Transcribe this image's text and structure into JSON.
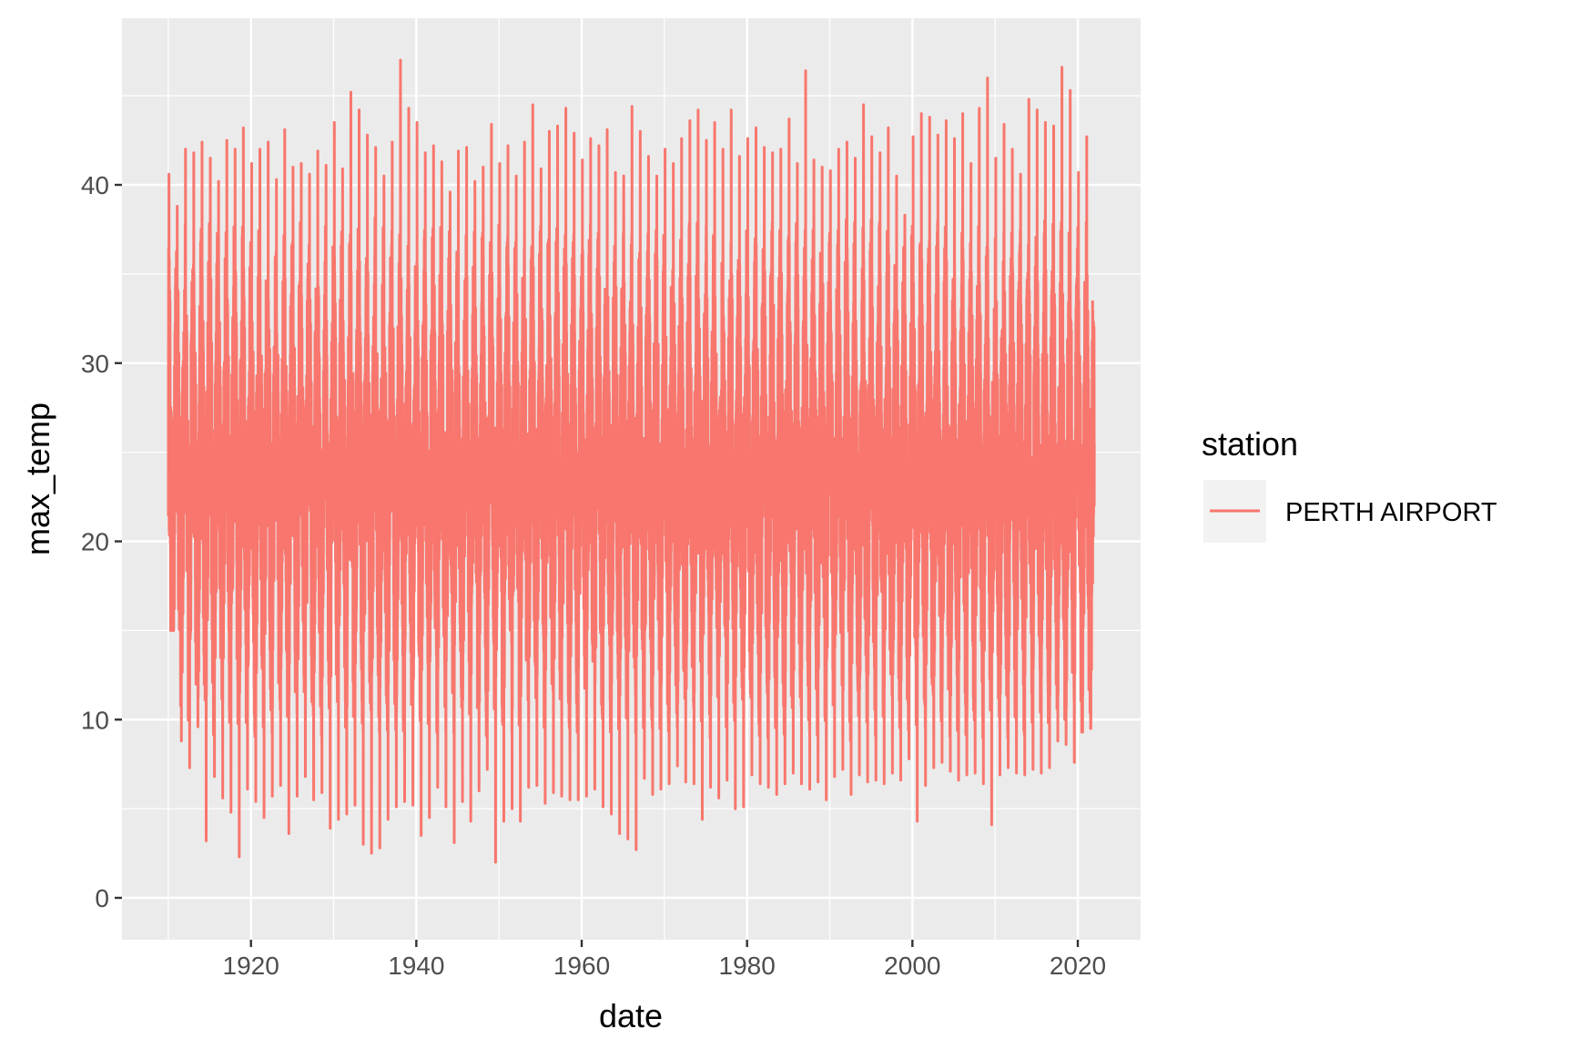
{
  "chart_data": {
    "type": "line",
    "title": "",
    "xlabel": "date",
    "ylabel": "max_temp",
    "x_range": [
      "1910-01-01",
      "2021-12-31"
    ],
    "x_ticks": [
      "1920",
      "1940",
      "1960",
      "1980",
      "2000",
      "2020"
    ],
    "ylim": [
      0,
      47
    ],
    "y_ticks": [
      0,
      10,
      20,
      30,
      40
    ],
    "grid": true,
    "legend": {
      "title": "station",
      "placement": "right"
    },
    "series": [
      {
        "name": "PERTH AIRPORT",
        "color": "#f8766d",
        "sampling": "yearly extremes",
        "years": [
          1910,
          1911,
          1912,
          1913,
          1914,
          1915,
          1916,
          1917,
          1918,
          1919,
          1920,
          1921,
          1922,
          1923,
          1924,
          1925,
          1926,
          1927,
          1928,
          1929,
          1930,
          1931,
          1932,
          1933,
          1934,
          1935,
          1936,
          1937,
          1938,
          1939,
          1940,
          1941,
          1942,
          1943,
          1944,
          1945,
          1946,
          1947,
          1948,
          1949,
          1950,
          1951,
          1952,
          1953,
          1954,
          1955,
          1956,
          1957,
          1958,
          1959,
          1960,
          1961,
          1962,
          1963,
          1964,
          1965,
          1966,
          1967,
          1968,
          1969,
          1970,
          1971,
          1972,
          1973,
          1974,
          1975,
          1976,
          1977,
          1978,
          1979,
          1980,
          1981,
          1982,
          1983,
          1984,
          1985,
          1986,
          1987,
          1988,
          1989,
          1990,
          1991,
          1992,
          1993,
          1994,
          1995,
          1996,
          1997,
          1998,
          1999,
          2000,
          2001,
          2002,
          2003,
          2004,
          2005,
          2006,
          2007,
          2008,
          2009,
          2010,
          2011,
          2012,
          2013,
          2014,
          2015,
          2016,
          2017,
          2018,
          2019,
          2020,
          2021
        ],
        "annual_max": [
          40.6,
          38.8,
          42.0,
          41.8,
          42.4,
          41.5,
          40.2,
          42.5,
          42.0,
          43.2,
          41.2,
          42.0,
          42.4,
          40.3,
          43.1,
          41.0,
          41.2,
          40.6,
          41.9,
          41.1,
          43.5,
          40.9,
          45.2,
          44.2,
          42.8,
          42.1,
          40.5,
          42.4,
          47.0,
          44.3,
          43.5,
          41.8,
          42.2,
          41.3,
          39.6,
          41.9,
          42.1,
          40.2,
          41.0,
          43.4,
          41.2,
          42.2,
          40.5,
          42.4,
          44.5,
          40.9,
          43.0,
          43.3,
          44.3,
          42.9,
          41.4,
          42.6,
          42.2,
          43.1,
          40.7,
          40.5,
          44.4,
          43.0,
          41.6,
          40.5,
          42.0,
          41.2,
          42.6,
          43.6,
          44.2,
          42.5,
          43.5,
          42.0,
          44.2,
          41.6,
          42.6,
          43.2,
          42.1,
          41.8,
          42.0,
          43.7,
          41.2,
          46.4,
          41.4,
          41.0,
          40.8,
          42.0,
          42.4,
          41.5,
          44.5,
          42.7,
          41.8,
          43.2,
          40.5,
          38.3,
          42.7,
          44.0,
          43.8,
          42.8,
          43.6,
          42.6,
          44.0,
          41.2,
          44.3,
          46.0,
          41.5,
          43.4,
          42.0,
          40.6,
          44.8,
          44.2,
          43.5,
          43.3,
          46.6,
          45.3,
          40.7,
          42.7
        ],
        "annual_min": [
          15.0,
          8.8,
          7.3,
          9.6,
          3.2,
          6.8,
          5.6,
          4.8,
          2.3,
          6.1,
          5.4,
          4.5,
          5.7,
          6.3,
          3.6,
          5.7,
          6.8,
          5.5,
          5.9,
          3.9,
          4.4,
          4.7,
          5.2,
          3.0,
          2.5,
          2.8,
          4.4,
          5.1,
          5.4,
          5.2,
          3.5,
          4.5,
          6.2,
          5.1,
          3.1,
          5.4,
          4.3,
          6.0,
          7.2,
          2.0,
          4.3,
          5.0,
          4.3,
          6.2,
          6.3,
          5.3,
          5.9,
          5.7,
          5.5,
          5.5,
          5.7,
          6.1,
          5.1,
          4.7,
          3.6,
          3.3,
          2.7,
          6.7,
          5.8,
          6.1,
          6.4,
          7.4,
          6.5,
          6.4,
          4.4,
          6.2,
          5.6,
          6.6,
          5.0,
          5.1,
          6.9,
          6.4,
          6.2,
          5.8,
          6.4,
          7.0,
          6.4,
          6.1,
          6.5,
          5.5,
          6.8,
          7.2,
          5.8,
          6.9,
          6.5,
          6.6,
          6.4,
          7.0,
          6.6,
          7.8,
          4.3,
          6.3,
          7.3,
          7.6,
          7.1,
          6.6,
          6.9,
          7.0,
          6.4,
          4.1,
          6.9,
          7.3,
          7.0,
          6.9,
          7.2,
          7.0,
          7.3,
          8.8,
          8.6,
          7.6,
          9.3,
          9.5
        ]
      }
    ]
  }
}
